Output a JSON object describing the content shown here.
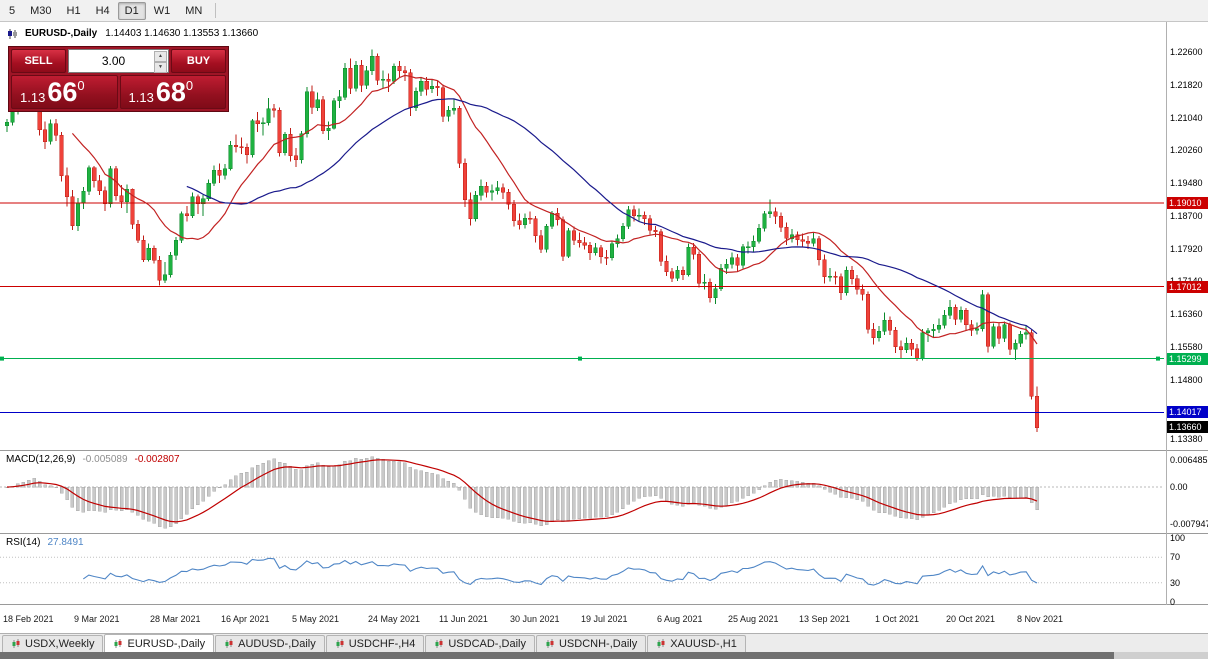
{
  "toolbar": {
    "timeframes": [
      "5",
      "M30",
      "H1",
      "H4",
      "D1",
      "W1",
      "MN"
    ],
    "active_timeframe": "D1"
  },
  "chart_header": {
    "symbol_period": "EURUSD-,Daily",
    "ohlc": "1.14403 1.14630 1.13553 1.13660"
  },
  "trade_panel": {
    "sell_label": "SELL",
    "buy_label": "BUY",
    "volume": "3.00",
    "sell_price": {
      "figure": "1.13",
      "pips": "66",
      "point": "0"
    },
    "buy_price": {
      "figure": "1.13",
      "pips": "68",
      "point": "0"
    }
  },
  "indicator_labels": {
    "macd_name": "MACD(12,26,9)",
    "macd_value": "-0.005089",
    "macd_signal_value": "-0.002807",
    "rsi_name": "RSI(14)",
    "rsi_value": "27.8491"
  },
  "axes": {
    "price_labels": [
      "1.22600",
      "1.21820",
      "1.21040",
      "1.20260",
      "1.19480",
      "1.18700",
      "1.17920",
      "1.17140",
      "1.16360",
      "1.15580",
      "1.14800",
      "1.13380"
    ],
    "macd_labels": [
      "0.006485",
      "0.00",
      "-0.007947"
    ],
    "rsi_labels": [
      "100",
      "70",
      "30",
      "0"
    ],
    "date_labels": [
      "18 Feb 2021",
      "9 Mar 2021",
      "28 Mar 2021",
      "16 Apr 2021",
      "5 May 2021",
      "24 May 2021",
      "11 Jun 2021",
      "30 Jun 2021",
      "19 Jul 2021",
      "6 Aug 2021",
      "25 Aug 2021",
      "13 Sep 2021",
      "1 Oct 2021",
      "20 Oct 2021",
      "8 Nov 2021"
    ]
  },
  "price_markers": {
    "current": {
      "label": "1.13660",
      "price": 1.1366,
      "bg": "#000000"
    },
    "lines": [
      {
        "label": "1.19010",
        "price": 1.1901,
        "color": "#cc0000",
        "handles": false
      },
      {
        "label": "1.17012",
        "price": 1.17012,
        "color": "#cc0000",
        "handles": false
      },
      {
        "label": "1.15299",
        "price": 1.15299,
        "color": "#00b050",
        "handles": true
      },
      {
        "label": "1.14017",
        "price": 1.14017,
        "color": "#0000c8",
        "handles": false
      }
    ]
  },
  "tabs": [
    {
      "label": "USDX,Weekly",
      "active": false
    },
    {
      "label": "EURUSD-,Daily",
      "active": true
    },
    {
      "label": "AUDUSD-,Daily",
      "active": false
    },
    {
      "label": "USDCHF-,H4",
      "active": false
    },
    {
      "label": "USDCAD-,Daily",
      "active": false
    },
    {
      "label": "USDCNH-,Daily",
      "active": false
    },
    {
      "label": "XAUUSD-,H1",
      "active": false
    }
  ],
  "chart_data": {
    "type": "candlestick",
    "symbol": "EURUSD-",
    "period": "Daily",
    "last_bar": {
      "open": 1.14403,
      "high": 1.1463,
      "low": 1.13553,
      "close": 1.1366
    },
    "y_axis_range": [
      1.13,
      1.23
    ],
    "up_color": "#1fb141",
    "up_border": "#0c8a2c",
    "down_color": "#ef423a",
    "down_border": "#bf1d16",
    "moving_averages": [
      {
        "period": 13,
        "color": "#c22222"
      },
      {
        "period": 34,
        "color": "#1a1a8c"
      }
    ],
    "macd": {
      "fast": 12,
      "slow": 26,
      "signal": 9,
      "hist_color": "#c9c9c9",
      "hist_border": "#a0a0a0",
      "line_color": "#c00000",
      "current": -0.005089,
      "current_signal": -0.002807
    },
    "rsi": {
      "period": 14,
      "color": "#4f86c6",
      "levels": [
        70,
        30
      ],
      "current": 27.8491
    },
    "horizontal_lines": [
      1.1901,
      1.17012,
      1.15299,
      1.14017
    ],
    "candles": [
      [
        1.2085,
        1.2101,
        1.207,
        1.2093
      ],
      [
        1.2093,
        1.213,
        1.2085,
        1.2118
      ],
      [
        1.2118,
        1.2166,
        1.2111,
        1.2157
      ],
      [
        1.2157,
        1.2172,
        1.2136,
        1.215
      ],
      [
        1.215,
        1.2176,
        1.2135,
        1.2168
      ],
      [
        1.2168,
        1.2243,
        1.216,
        1.2175
      ],
      [
        1.2175,
        1.2183,
        1.2061,
        1.2075
      ],
      [
        1.2075,
        1.2094,
        1.2029,
        1.2047
      ],
      [
        1.2047,
        1.2099,
        1.204,
        1.2089
      ],
      [
        1.2089,
        1.2101,
        1.2048,
        1.2062
      ],
      [
        1.2062,
        1.2069,
        1.1952,
        1.1966
      ],
      [
        1.1966,
        1.1985,
        1.1892,
        1.1915
      ],
      [
        1.1915,
        1.1932,
        1.1836,
        1.1846
      ],
      [
        1.1846,
        1.1912,
        1.1834,
        1.19
      ],
      [
        1.19,
        1.1939,
        1.1886,
        1.1928
      ],
      [
        1.1928,
        1.199,
        1.1919,
        1.1984
      ],
      [
        1.1984,
        1.1989,
        1.1937,
        1.1953
      ],
      [
        1.1953,
        1.1967,
        1.192,
        1.193
      ],
      [
        1.193,
        1.194,
        1.1882,
        1.1899
      ],
      [
        1.1899,
        1.1989,
        1.189,
        1.1982
      ],
      [
        1.1982,
        1.1988,
        1.1906,
        1.1918
      ],
      [
        1.1918,
        1.1943,
        1.1888,
        1.1904
      ],
      [
        1.1904,
        1.1944,
        1.1877,
        1.1933
      ],
      [
        1.1933,
        1.1935,
        1.1838,
        1.185
      ],
      [
        1.185,
        1.186,
        1.1805,
        1.1812
      ],
      [
        1.1812,
        1.1823,
        1.176,
        1.1765
      ],
      [
        1.1765,
        1.1804,
        1.1761,
        1.1793
      ],
      [
        1.1793,
        1.1799,
        1.1756,
        1.1764
      ],
      [
        1.1764,
        1.1774,
        1.1704,
        1.1717
      ],
      [
        1.1717,
        1.176,
        1.171,
        1.173
      ],
      [
        1.173,
        1.1784,
        1.1723,
        1.1776
      ],
      [
        1.1776,
        1.182,
        1.1765,
        1.1812
      ],
      [
        1.1812,
        1.188,
        1.1805,
        1.1875
      ],
      [
        1.1875,
        1.1893,
        1.1857,
        1.187
      ],
      [
        1.187,
        1.1925,
        1.1865,
        1.1916
      ],
      [
        1.1916,
        1.1921,
        1.1874,
        1.1899
      ],
      [
        1.1899,
        1.192,
        1.1869,
        1.1911
      ],
      [
        1.1911,
        1.1956,
        1.1905,
        1.1948
      ],
      [
        1.1948,
        1.199,
        1.1941,
        1.1978
      ],
      [
        1.1978,
        1.1994,
        1.1948,
        1.1967
      ],
      [
        1.1967,
        1.1993,
        1.1956,
        1.1982
      ],
      [
        1.1982,
        1.2048,
        1.1978,
        1.2038
      ],
      [
        1.2038,
        1.2063,
        1.2021,
        1.2035
      ],
      [
        1.2035,
        1.2056,
        1.2017,
        1.2033
      ],
      [
        1.2033,
        1.2042,
        1.1994,
        1.2015
      ],
      [
        1.2015,
        1.21,
        1.2009,
        1.2097
      ],
      [
        1.2097,
        1.2117,
        1.207,
        1.2089
      ],
      [
        1.2089,
        1.2104,
        1.2061,
        1.2092
      ],
      [
        1.2092,
        1.215,
        1.2085,
        1.2125
      ],
      [
        1.2125,
        1.2136,
        1.2104,
        1.2121
      ],
      [
        1.2121,
        1.2128,
        1.2011,
        1.202
      ],
      [
        1.202,
        1.207,
        1.2014,
        1.2064
      ],
      [
        1.2064,
        1.2079,
        1.1999,
        1.2013
      ],
      [
        1.2013,
        1.2032,
        1.1986,
        1.2004
      ],
      [
        1.2004,
        1.2072,
        1.1994,
        1.2065
      ],
      [
        1.2065,
        1.2177,
        1.2056,
        1.2165
      ],
      [
        1.2165,
        1.218,
        1.2112,
        1.2128
      ],
      [
        1.2128,
        1.2163,
        1.212,
        1.2147
      ],
      [
        1.2147,
        1.2155,
        1.2065,
        1.2073
      ],
      [
        1.2073,
        1.2094,
        1.2051,
        1.2079
      ],
      [
        1.2079,
        1.2151,
        1.2075,
        1.2144
      ],
      [
        1.2144,
        1.2169,
        1.2127,
        1.2153
      ],
      [
        1.2153,
        1.2234,
        1.2146,
        1.2222
      ],
      [
        1.2222,
        1.2245,
        1.216,
        1.2174
      ],
      [
        1.2174,
        1.2238,
        1.2166,
        1.2229
      ],
      [
        1.2229,
        1.2241,
        1.2165,
        1.2181
      ],
      [
        1.2181,
        1.2227,
        1.2172,
        1.2215
      ],
      [
        1.2215,
        1.2266,
        1.2205,
        1.225
      ],
      [
        1.225,
        1.2257,
        1.2181,
        1.2193
      ],
      [
        1.2193,
        1.2216,
        1.2174,
        1.2195
      ],
      [
        1.2195,
        1.2209,
        1.2165,
        1.219
      ],
      [
        1.219,
        1.2233,
        1.2184,
        1.2226
      ],
      [
        1.2226,
        1.2238,
        1.2201,
        1.2216
      ],
      [
        1.2216,
        1.2227,
        1.2191,
        1.2211
      ],
      [
        1.2211,
        1.2219,
        1.2108,
        1.2127
      ],
      [
        1.2127,
        1.2176,
        1.2119,
        1.2167
      ],
      [
        1.2167,
        1.2198,
        1.2155,
        1.219
      ],
      [
        1.219,
        1.2201,
        1.2157,
        1.2172
      ],
      [
        1.2172,
        1.2195,
        1.2162,
        1.2179
      ],
      [
        1.2179,
        1.2191,
        1.2155,
        1.2175
      ],
      [
        1.2175,
        1.2183,
        1.2093,
        1.2107
      ],
      [
        1.2107,
        1.2132,
        1.2094,
        1.2121
      ],
      [
        1.2121,
        1.2148,
        1.2111,
        1.2126
      ],
      [
        1.2126,
        1.2132,
        1.1984,
        1.1995
      ],
      [
        1.1995,
        1.2006,
        1.1891,
        1.1908
      ],
      [
        1.1908,
        1.1925,
        1.1847,
        1.1863
      ],
      [
        1.1863,
        1.1929,
        1.1856,
        1.1919
      ],
      [
        1.1919,
        1.1956,
        1.1906,
        1.194
      ],
      [
        1.194,
        1.1951,
        1.1913,
        1.1926
      ],
      [
        1.1926,
        1.1945,
        1.1907,
        1.193
      ],
      [
        1.193,
        1.1953,
        1.1921,
        1.1937
      ],
      [
        1.1937,
        1.1947,
        1.191,
        1.1926
      ],
      [
        1.1926,
        1.1934,
        1.1885,
        1.1898
      ],
      [
        1.1898,
        1.1908,
        1.1845,
        1.1858
      ],
      [
        1.1858,
        1.1875,
        1.1837,
        1.1849
      ],
      [
        1.1849,
        1.1876,
        1.184,
        1.1864
      ],
      [
        1.1864,
        1.188,
        1.185,
        1.1863
      ],
      [
        1.1863,
        1.187,
        1.1807,
        1.1823
      ],
      [
        1.1823,
        1.1836,
        1.1781,
        1.179
      ],
      [
        1.179,
        1.1851,
        1.1783,
        1.1845
      ],
      [
        1.1845,
        1.1882,
        1.1838,
        1.1876
      ],
      [
        1.1876,
        1.1888,
        1.1847,
        1.1861
      ],
      [
        1.1861,
        1.1868,
        1.1762,
        1.1774
      ],
      [
        1.1774,
        1.1841,
        1.1769,
        1.1835
      ],
      [
        1.1835,
        1.1844,
        1.1801,
        1.1812
      ],
      [
        1.1812,
        1.183,
        1.1795,
        1.1806
      ],
      [
        1.1806,
        1.182,
        1.179,
        1.18
      ],
      [
        1.18,
        1.1808,
        1.1765,
        1.1782
      ],
      [
        1.1782,
        1.1805,
        1.1775,
        1.1794
      ],
      [
        1.1794,
        1.18,
        1.1756,
        1.1772
      ],
      [
        1.1772,
        1.1789,
        1.1753,
        1.177
      ],
      [
        1.177,
        1.1811,
        1.1764,
        1.1804
      ],
      [
        1.1804,
        1.1825,
        1.1794,
        1.1816
      ],
      [
        1.1816,
        1.1853,
        1.1809,
        1.1845
      ],
      [
        1.1845,
        1.1893,
        1.1839,
        1.1885
      ],
      [
        1.1885,
        1.1894,
        1.1856,
        1.187
      ],
      [
        1.187,
        1.1887,
        1.1858,
        1.1872
      ],
      [
        1.1872,
        1.188,
        1.1848,
        1.1863
      ],
      [
        1.1863,
        1.1872,
        1.1825,
        1.1836
      ],
      [
        1.1836,
        1.1846,
        1.1819,
        1.1832
      ],
      [
        1.1832,
        1.1838,
        1.1751,
        1.1762
      ],
      [
        1.1762,
        1.1775,
        1.1727,
        1.1737
      ],
      [
        1.1737,
        1.1746,
        1.1712,
        1.1722
      ],
      [
        1.1722,
        1.1751,
        1.1715,
        1.174
      ],
      [
        1.174,
        1.1749,
        1.1717,
        1.173
      ],
      [
        1.173,
        1.1804,
        1.1725,
        1.1795
      ],
      [
        1.1795,
        1.1805,
        1.1766,
        1.1778
      ],
      [
        1.1778,
        1.1785,
        1.1699,
        1.171
      ],
      [
        1.171,
        1.1732,
        1.1694,
        1.1712
      ],
      [
        1.1712,
        1.1721,
        1.1664,
        1.1675
      ],
      [
        1.1675,
        1.1708,
        1.166,
        1.1697
      ],
      [
        1.1697,
        1.1755,
        1.1691,
        1.1745
      ],
      [
        1.1745,
        1.1767,
        1.1732,
        1.1755
      ],
      [
        1.1755,
        1.1783,
        1.1744,
        1.177
      ],
      [
        1.177,
        1.1779,
        1.1737,
        1.1752
      ],
      [
        1.1752,
        1.1803,
        1.1744,
        1.1796
      ],
      [
        1.1796,
        1.1809,
        1.178,
        1.1797
      ],
      [
        1.1797,
        1.1823,
        1.1785,
        1.181
      ],
      [
        1.181,
        1.185,
        1.1804,
        1.184
      ],
      [
        1.184,
        1.1882,
        1.1833,
        1.1875
      ],
      [
        1.1875,
        1.1909,
        1.1865,
        1.188
      ],
      [
        1.188,
        1.189,
        1.1851,
        1.1869
      ],
      [
        1.1869,
        1.1878,
        1.1831,
        1.1843
      ],
      [
        1.1843,
        1.1854,
        1.1801,
        1.1816
      ],
      [
        1.1816,
        1.1838,
        1.1807,
        1.1825
      ],
      [
        1.1825,
        1.1833,
        1.1799,
        1.1813
      ],
      [
        1.1813,
        1.1828,
        1.1797,
        1.181
      ],
      [
        1.181,
        1.1822,
        1.1791,
        1.1805
      ],
      [
        1.1805,
        1.183,
        1.1797,
        1.1816
      ],
      [
        1.1816,
        1.1822,
        1.1752,
        1.1766
      ],
      [
        1.1766,
        1.1778,
        1.1709,
        1.1725
      ],
      [
        1.1725,
        1.1746,
        1.1714,
        1.1726
      ],
      [
        1.1726,
        1.1737,
        1.1706,
        1.1725
      ],
      [
        1.1725,
        1.1733,
        1.167,
        1.1687
      ],
      [
        1.1687,
        1.1749,
        1.168,
        1.174
      ],
      [
        1.174,
        1.175,
        1.1706,
        1.172
      ],
      [
        1.172,
        1.1729,
        1.1683,
        1.1695
      ],
      [
        1.1695,
        1.1706,
        1.1668,
        1.1683
      ],
      [
        1.1683,
        1.169,
        1.159,
        1.16
      ],
      [
        1.16,
        1.1615,
        1.1564,
        1.158
      ],
      [
        1.158,
        1.1608,
        1.1571,
        1.1595
      ],
      [
        1.1595,
        1.164,
        1.1586,
        1.1622
      ],
      [
        1.1622,
        1.163,
        1.1586,
        1.1598
      ],
      [
        1.1598,
        1.1605,
        1.1543,
        1.1558
      ],
      [
        1.1558,
        1.1573,
        1.1529,
        1.1551
      ],
      [
        1.1551,
        1.158,
        1.1543,
        1.1567
      ],
      [
        1.1567,
        1.1577,
        1.1536,
        1.1553
      ],
      [
        1.1553,
        1.1565,
        1.1524,
        1.1531
      ],
      [
        1.1531,
        1.16,
        1.1526,
        1.1592
      ],
      [
        1.1592,
        1.1603,
        1.1569,
        1.1596
      ],
      [
        1.1596,
        1.1612,
        1.158,
        1.16
      ],
      [
        1.16,
        1.1625,
        1.1591,
        1.1609
      ],
      [
        1.1609,
        1.1646,
        1.1602,
        1.1633
      ],
      [
        1.1633,
        1.167,
        1.1624,
        1.1652
      ],
      [
        1.1652,
        1.1659,
        1.161,
        1.1624
      ],
      [
        1.1624,
        1.1654,
        1.1616,
        1.1645
      ],
      [
        1.1645,
        1.165,
        1.1598,
        1.1611
      ],
      [
        1.1611,
        1.1622,
        1.1584,
        1.1598
      ],
      [
        1.1598,
        1.1616,
        1.1587,
        1.1601
      ],
      [
        1.1601,
        1.1693,
        1.1594,
        1.1682
      ],
      [
        1.1682,
        1.1687,
        1.1545,
        1.156
      ],
      [
        1.156,
        1.1613,
        1.1554,
        1.1606
      ],
      [
        1.1606,
        1.1616,
        1.1565,
        1.1579
      ],
      [
        1.1579,
        1.1618,
        1.1569,
        1.1611
      ],
      [
        1.1611,
        1.1616,
        1.1538,
        1.1552
      ],
      [
        1.1552,
        1.1576,
        1.1527,
        1.1567
      ],
      [
        1.1567,
        1.1596,
        1.1558,
        1.1588
      ],
      [
        1.1588,
        1.1609,
        1.1576,
        1.1592
      ],
      [
        1.1592,
        1.1599,
        1.1433,
        1.144
      ],
      [
        1.14403,
        1.1463,
        1.13553,
        1.1366
      ]
    ]
  }
}
